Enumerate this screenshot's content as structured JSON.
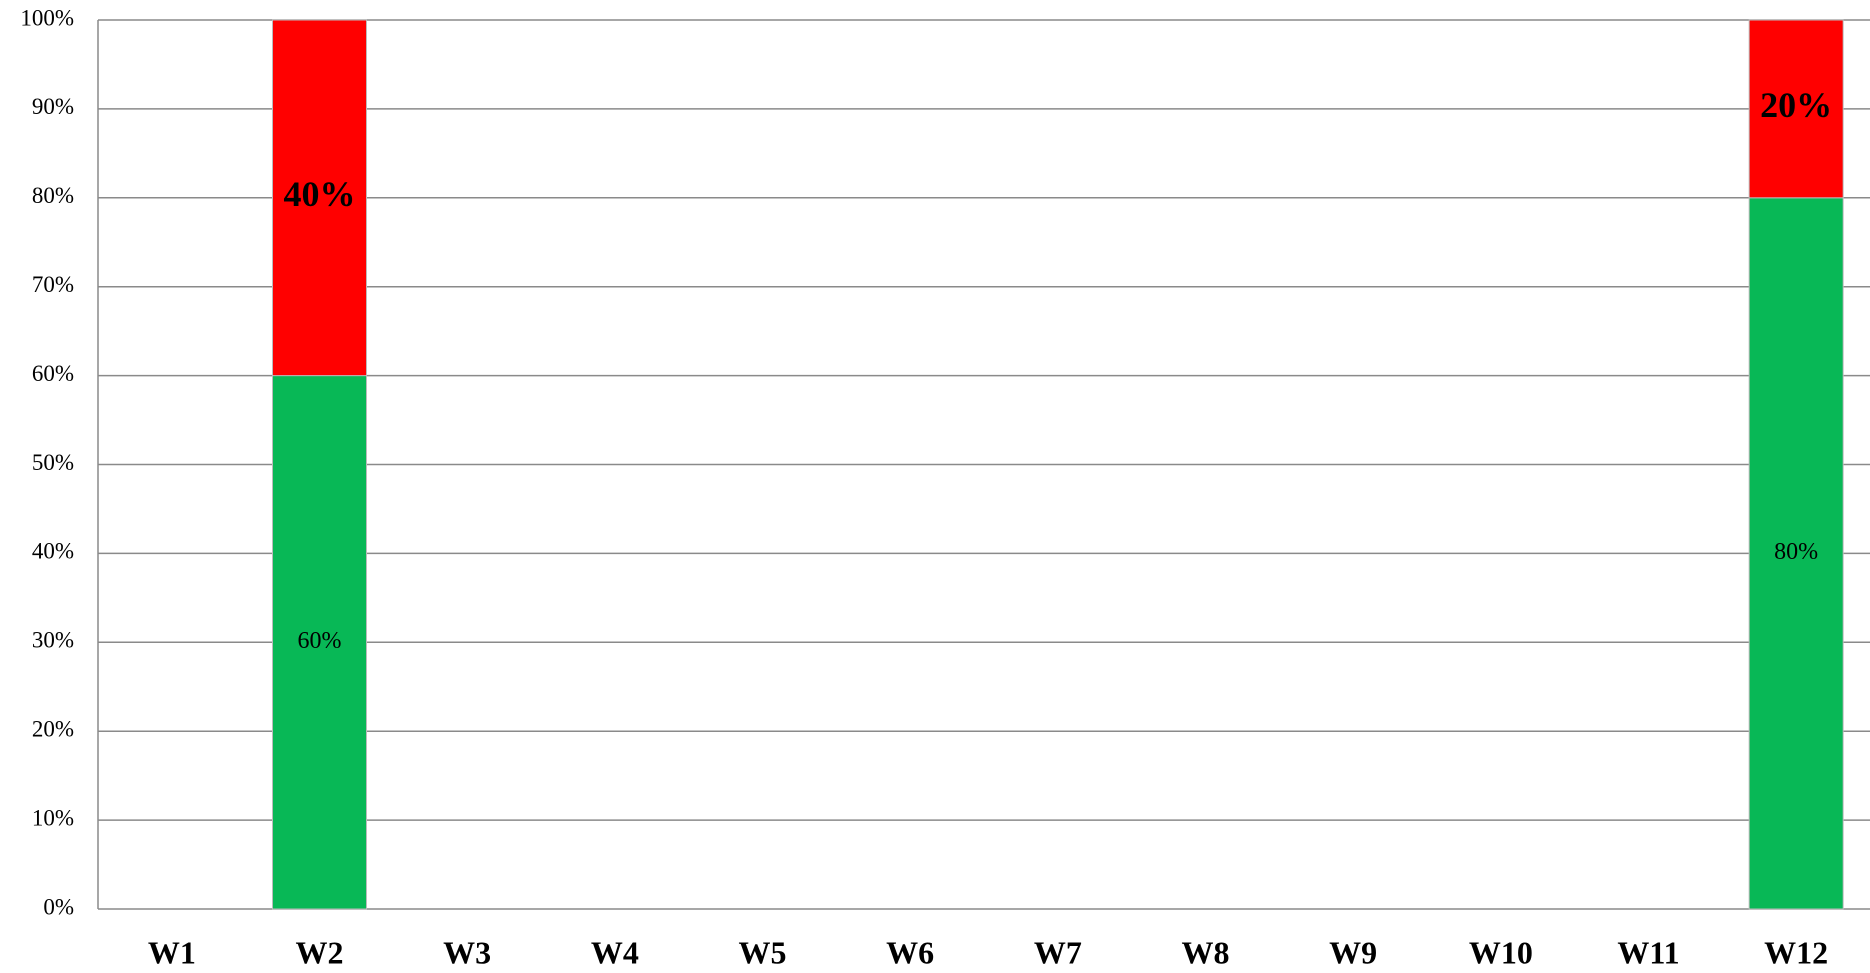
{
  "chart_data": {
    "type": "stacked_bar",
    "categories": [
      "W1",
      "W2",
      "W3",
      "W4",
      "W5",
      "W6",
      "W7",
      "W8",
      "W9",
      "W10",
      "W11",
      "W12"
    ],
    "series": [
      {
        "color": "#08b856",
        "values": [
          null,
          60,
          null,
          null,
          null,
          null,
          null,
          null,
          null,
          null,
          null,
          80
        ],
        "value_labels": [
          null,
          "60%",
          null,
          null,
          null,
          null,
          null,
          null,
          null,
          null,
          null,
          "80%"
        ]
      },
      {
        "color": "#ff0000",
        "values": [
          null,
          40,
          null,
          null,
          null,
          null,
          null,
          null,
          null,
          null,
          null,
          20
        ],
        "value_labels": [
          null,
          "40%",
          null,
          null,
          null,
          null,
          null,
          null,
          null,
          null,
          null,
          "20%"
        ]
      }
    ],
    "ylim": [
      0,
      100
    ],
    "yticks": [
      {
        "value": 0,
        "label": "0%"
      },
      {
        "value": 10,
        "label": "10%"
      },
      {
        "value": 20,
        "label": "20%"
      },
      {
        "value": 30,
        "label": "30%"
      },
      {
        "value": 40,
        "label": "40%"
      },
      {
        "value": 50,
        "label": "50%"
      },
      {
        "value": 60,
        "label": "60%"
      },
      {
        "value": 70,
        "label": "70%"
      },
      {
        "value": 80,
        "label": "80%"
      },
      {
        "value": 90,
        "label": "90%"
      },
      {
        "value": 100,
        "label": "100%"
      }
    ],
    "grid": true
  }
}
